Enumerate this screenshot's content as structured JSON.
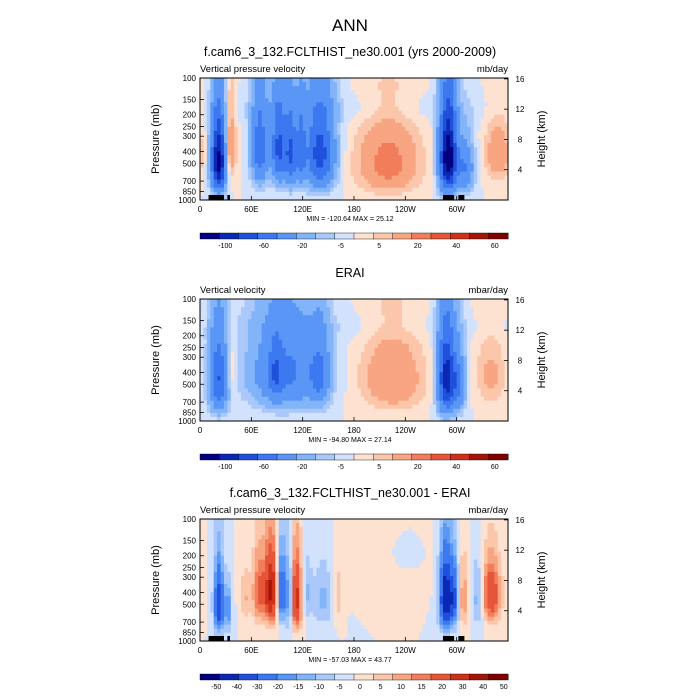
{
  "figure": {
    "title": "ANN"
  },
  "colors": {
    "cmap_left": "#000080",
    "cmap_mid": "#ffffff",
    "cmap_right": "#800000",
    "land_mask": "#000000"
  },
  "chart_data": [
    {
      "type": "heatmap",
      "title": "f.cam6_3_132.FCLTHIST_ne30.001 (yrs 2000-2009)",
      "left_label": "Vertical pressure velocity",
      "right_label": "mb/day",
      "ylabel": "Pressure (mb)",
      "ylabel_right": "Height (km)",
      "x_ticks": [
        "0",
        "60E",
        "120E",
        "180",
        "120W",
        "60W"
      ],
      "x_tick_lon": [
        0,
        60,
        120,
        180,
        240,
        300
      ],
      "xlim": [
        0,
        360
      ],
      "y_ticks": [
        "100",
        "150",
        "200",
        "250",
        "300",
        "400",
        "500",
        "700",
        "850",
        "1000"
      ],
      "y_tick_values": [
        100,
        150,
        200,
        250,
        300,
        400,
        500,
        700,
        850,
        1000
      ],
      "ylim": [
        100,
        1000
      ],
      "y_scale": "log",
      "height_ticks": [
        "16",
        "12",
        "8",
        "4"
      ],
      "height_tick_values": [
        16,
        12,
        8,
        4
      ],
      "min_max": "MIN = -120.64   MAX = 25.12",
      "colorbar_labels": [
        "-100",
        "-60",
        "-20",
        "-5",
        "5",
        "20",
        "40",
        "60"
      ],
      "colorbar_levels": [
        -120,
        -100,
        -80,
        -60,
        -40,
        -20,
        -10,
        -5,
        0,
        5,
        10,
        20,
        30,
        40,
        50,
        60,
        80
      ],
      "land_bars": [
        [
          10,
          28
        ],
        [
          32,
          35
        ],
        [
          284,
          297
        ],
        [
          302,
          309
        ]
      ],
      "features": [
        {
          "lon": 22,
          "p": 480,
          "width": 6,
          "depth": 420,
          "amp": -110
        },
        {
          "lon": 34,
          "p": 380,
          "width": 5,
          "depth": 350,
          "amp": 25
        },
        {
          "lon": 70,
          "p": 380,
          "width": 7,
          "depth": 380,
          "amp": -55
        },
        {
          "lon": 92,
          "p": 380,
          "width": 6,
          "depth": 380,
          "amp": -65
        },
        {
          "lon": 106,
          "p": 420,
          "width": 5,
          "depth": 380,
          "amp": -60
        },
        {
          "lon": 140,
          "p": 420,
          "width": 12,
          "depth": 420,
          "amp": -70
        },
        {
          "lon": 118,
          "p": 400,
          "width": 4,
          "depth": 380,
          "amp": -40
        },
        {
          "lon": 220,
          "p": 500,
          "width": 25,
          "depth": 420,
          "amp": 25
        },
        {
          "lon": 290,
          "p": 450,
          "width": 7,
          "depth": 450,
          "amp": -120
        },
        {
          "lon": 310,
          "p": 550,
          "width": 7,
          "depth": 330,
          "amp": -40
        },
        {
          "lon": 348,
          "p": 420,
          "width": 10,
          "depth": 300,
          "amp": 18
        },
        {
          "lon": 180,
          "p": 180,
          "width": 150,
          "depth": 70,
          "amp": -4
        }
      ]
    },
    {
      "type": "heatmap",
      "title": "ERAI",
      "left_label": "Vertical velocity",
      "right_label": "mbar/day",
      "ylabel": "Pressure (mb)",
      "ylabel_right": "Height (km)",
      "x_ticks": [
        "0",
        "60E",
        "120E",
        "180",
        "120W",
        "60W"
      ],
      "x_tick_lon": [
        0,
        60,
        120,
        180,
        240,
        300
      ],
      "xlim": [
        0,
        360
      ],
      "y_ticks": [
        "100",
        "150",
        "200",
        "250",
        "300",
        "400",
        "500",
        "700",
        "850",
        "1000"
      ],
      "y_tick_values": [
        100,
        150,
        200,
        250,
        300,
        400,
        500,
        700,
        850,
        1000
      ],
      "ylim": [
        100,
        1000
      ],
      "y_scale": "log",
      "height_ticks": [
        "16",
        "12",
        "8",
        "4"
      ],
      "height_tick_values": [
        16,
        12,
        8,
        4
      ],
      "min_max": "MIN = -94.80   MAX = 27.14",
      "colorbar_labels": [
        "-100",
        "-60",
        "-20",
        "-5",
        "5",
        "20",
        "40",
        "60"
      ],
      "colorbar_levels": [
        -120,
        -100,
        -80,
        -60,
        -40,
        -20,
        -10,
        -5,
        0,
        5,
        10,
        20,
        30,
        40,
        50,
        60,
        80
      ],
      "land_bars": [],
      "features": [
        {
          "lon": 22,
          "p": 450,
          "width": 8,
          "depth": 420,
          "amp": -60
        },
        {
          "lon": 35,
          "p": 400,
          "width": 5,
          "depth": 300,
          "amp": 15
        },
        {
          "lon": 100,
          "p": 400,
          "width": 28,
          "depth": 420,
          "amp": -45
        },
        {
          "lon": 88,
          "p": 400,
          "width": 5,
          "depth": 300,
          "amp": -25
        },
        {
          "lon": 140,
          "p": 420,
          "width": 8,
          "depth": 350,
          "amp": -35
        },
        {
          "lon": 225,
          "p": 450,
          "width": 25,
          "depth": 400,
          "amp": 20
        },
        {
          "lon": 288,
          "p": 450,
          "width": 7,
          "depth": 450,
          "amp": -90
        },
        {
          "lon": 302,
          "p": 500,
          "width": 6,
          "depth": 350,
          "amp": -40
        },
        {
          "lon": 340,
          "p": 420,
          "width": 12,
          "depth": 350,
          "amp": 12
        },
        {
          "lon": 180,
          "p": 170,
          "width": 150,
          "depth": 60,
          "amp": -3
        }
      ]
    },
    {
      "type": "heatmap",
      "title": "f.cam6_3_132.FCLTHIST_ne30.001 - ERAI",
      "left_label": "Vertical pressure velocity",
      "right_label": "mbar/day",
      "ylabel": "Pressure (mb)",
      "ylabel_right": "Height (km)",
      "x_ticks": [
        "0",
        "60E",
        "120E",
        "180",
        "120W",
        "60W"
      ],
      "x_tick_lon": [
        0,
        60,
        120,
        180,
        240,
        300
      ],
      "xlim": [
        0,
        360
      ],
      "y_ticks": [
        "100",
        "150",
        "200",
        "250",
        "300",
        "400",
        "500",
        "700",
        "850",
        "1000"
      ],
      "y_tick_values": [
        100,
        150,
        200,
        250,
        300,
        400,
        500,
        700,
        850,
        1000
      ],
      "ylim": [
        100,
        1000
      ],
      "y_scale": "log",
      "height_ticks": [
        "16",
        "12",
        "8",
        "4"
      ],
      "height_tick_values": [
        16,
        12,
        8,
        4
      ],
      "min_max": "MIN = -57.03   MAX = 43.77",
      "colorbar_labels": [
        "-50",
        "-40",
        "-30",
        "-20",
        "-15",
        "-10",
        "-5",
        "0",
        "5",
        "10",
        "15",
        "20",
        "30",
        "40",
        "50"
      ],
      "colorbar_levels": [
        -60,
        -50,
        -40,
        -30,
        -20,
        -15,
        -10,
        -5,
        0,
        5,
        10,
        15,
        20,
        30,
        40,
        50,
        60
      ],
      "land_bars": [
        [
          10,
          28
        ],
        [
          32,
          35
        ],
        [
          284,
          297
        ],
        [
          302,
          309
        ]
      ],
      "features": [
        {
          "lon": 22,
          "p": 500,
          "width": 4,
          "depth": 400,
          "amp": -40
        },
        {
          "lon": 33,
          "p": 550,
          "width": 3,
          "depth": 300,
          "amp": -20
        },
        {
          "lon": 53,
          "p": 450,
          "width": 4,
          "depth": 300,
          "amp": 10
        },
        {
          "lon": 68,
          "p": 400,
          "width": 5,
          "depth": 350,
          "amp": 20
        },
        {
          "lon": 83,
          "p": 400,
          "width": 6,
          "depth": 350,
          "amp": 44
        },
        {
          "lon": 95,
          "p": 400,
          "width": 4,
          "depth": 350,
          "amp": -35
        },
        {
          "lon": 105,
          "p": 450,
          "width": 3,
          "depth": 400,
          "amp": -25
        },
        {
          "lon": 112,
          "p": 450,
          "width": 5,
          "depth": 400,
          "amp": 35
        },
        {
          "lon": 125,
          "p": 400,
          "width": 4,
          "depth": 300,
          "amp": -10
        },
        {
          "lon": 145,
          "p": 450,
          "width": 10,
          "depth": 350,
          "amp": -12
        },
        {
          "lon": 160,
          "p": 450,
          "width": 5,
          "depth": 300,
          "amp": 10
        },
        {
          "lon": 205,
          "p": 250,
          "width": 30,
          "depth": 200,
          "amp": 5
        },
        {
          "lon": 238,
          "p": 200,
          "width": 12,
          "depth": 80,
          "amp": -6
        },
        {
          "lon": 287,
          "p": 450,
          "width": 5,
          "depth": 400,
          "amp": -50
        },
        {
          "lon": 297,
          "p": 450,
          "width": 4,
          "depth": 350,
          "amp": -30
        },
        {
          "lon": 308,
          "p": 450,
          "width": 4,
          "depth": 350,
          "amp": 15
        },
        {
          "lon": 325,
          "p": 450,
          "width": 5,
          "depth": 350,
          "amp": -15
        },
        {
          "lon": 340,
          "p": 420,
          "width": 8,
          "depth": 300,
          "amp": 30
        }
      ]
    }
  ]
}
